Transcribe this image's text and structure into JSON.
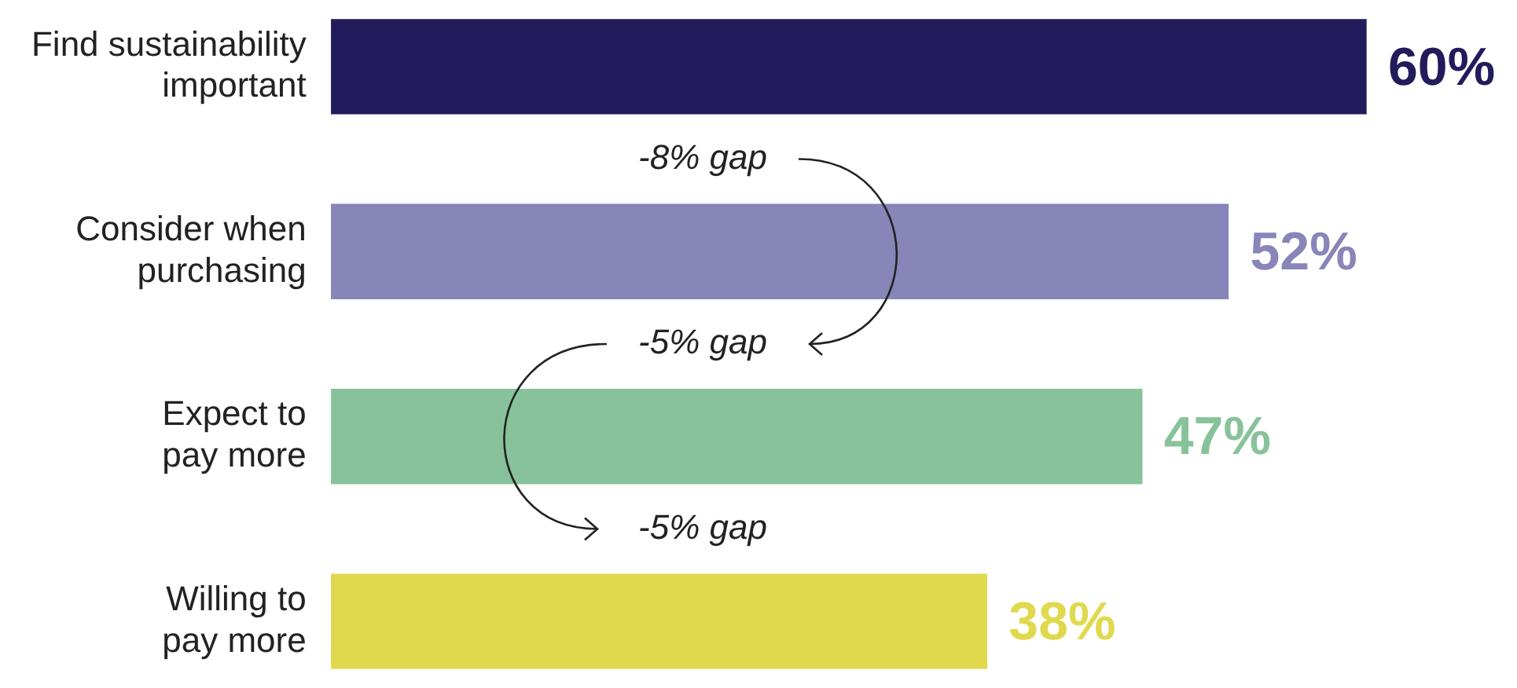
{
  "chart_data": {
    "type": "bar",
    "orientation": "horizontal",
    "tick_labels": "y",
    "categories": [
      "Find sustainability important",
      "Consider when purchasing",
      "Expect to pay more",
      "Willing to pay more"
    ],
    "values": [
      60,
      52,
      47,
      38
    ],
    "colors": [
      "#221b5c",
      "#8885b8",
      "#88c29a",
      "#e0d94e"
    ],
    "value_labels": [
      "60%",
      "52%",
      "47%",
      "38%"
    ],
    "annotations": [
      "-8% gap",
      "-5% gap",
      "-5% gap"
    ],
    "grid": false,
    "legend": false
  }
}
